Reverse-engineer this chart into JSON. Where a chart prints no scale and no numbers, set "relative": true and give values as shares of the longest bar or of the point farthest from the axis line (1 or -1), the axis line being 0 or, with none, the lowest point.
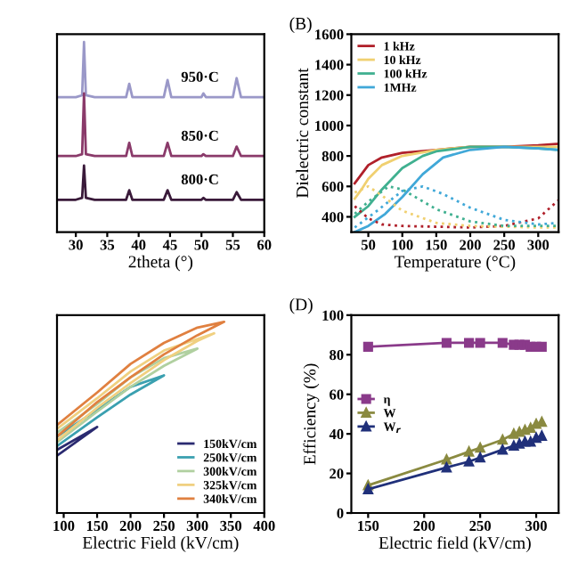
{
  "chart_data": [
    {
      "type": "line",
      "relative": true,
      "xlabel": "2theta (°)",
      "xlim": [
        27,
        60
      ],
      "xticks": [
        30,
        35,
        40,
        45,
        50,
        55,
        60
      ],
      "grid": false,
      "legend": false,
      "series": [
        {
          "color": "#9a98c8",
          "x": [
            27,
            30,
            31,
            31.3,
            31.6,
            33,
            38,
            38.5,
            39,
            44,
            44.6,
            45.2,
            50,
            50.3,
            50.7,
            55,
            55.6,
            56.3,
            60
          ],
          "values": [
            0.71,
            0.71,
            0.72,
            1.0,
            0.72,
            0.71,
            0.71,
            0.78,
            0.71,
            0.71,
            0.8,
            0.71,
            0.71,
            0.73,
            0.71,
            0.71,
            0.81,
            0.71,
            0.71
          ]
        },
        {
          "color": "#8a3a6a",
          "x": [
            27,
            30,
            31,
            31.3,
            31.6,
            33,
            38,
            38.5,
            39,
            44,
            44.6,
            45.2,
            50,
            50.3,
            50.7,
            55,
            55.6,
            56.3,
            60
          ],
          "values": [
            0.4,
            0.4,
            0.41,
            0.73,
            0.41,
            0.4,
            0.4,
            0.47,
            0.4,
            0.4,
            0.47,
            0.4,
            0.4,
            0.41,
            0.4,
            0.4,
            0.45,
            0.4,
            0.4
          ]
        },
        {
          "color": "#3a1a3a",
          "x": [
            27,
            30,
            31,
            31.3,
            31.6,
            33,
            38,
            38.5,
            39,
            44,
            44.6,
            45.2,
            50,
            50.3,
            50.7,
            55,
            55.6,
            56.3,
            60
          ],
          "values": [
            0.17,
            0.17,
            0.18,
            0.35,
            0.18,
            0.17,
            0.17,
            0.22,
            0.17,
            0.17,
            0.22,
            0.17,
            0.17,
            0.18,
            0.17,
            0.17,
            0.21,
            0.17,
            0.17
          ]
        }
      ],
      "annotations": [
        "950·C",
        "850·C",
        "800·C"
      ]
    },
    {
      "type": "line",
      "title": "(B)",
      "xlabel": "Temperature (°C)",
      "ylabel": "Dielectric constant",
      "xlim": [
        25,
        330
      ],
      "xticks": [
        50,
        100,
        150,
        200,
        250,
        300
      ],
      "ylim": [
        300,
        1600
      ],
      "yticks": [
        400,
        600,
        800,
        1000,
        1200,
        1400,
        1600
      ],
      "grid": false,
      "legend": "top left",
      "series": [
        {
          "name": "1 kHz",
          "color": "#b0202a",
          "x": [
            30,
            40,
            50,
            70,
            100,
            150,
            200,
            250,
            300,
            330
          ],
          "values": [
            620,
            680,
            740,
            790,
            820,
            840,
            860,
            860,
            870,
            880
          ]
        },
        {
          "name": "10 kHz",
          "color": "#f0d070",
          "x": [
            30,
            40,
            50,
            70,
            100,
            150,
            200,
            250,
            300,
            330
          ],
          "values": [
            520,
            580,
            650,
            740,
            800,
            840,
            860,
            860,
            860,
            860
          ]
        },
        {
          "name": "100 kHz",
          "color": "#40b090",
          "x": [
            30,
            50,
            70,
            100,
            130,
            150,
            200,
            250,
            300,
            330
          ],
          "values": [
            400,
            470,
            580,
            720,
            800,
            830,
            860,
            860,
            850,
            840
          ]
        },
        {
          "name": "1MHz",
          "color": "#40a8d8",
          "x": [
            30,
            50,
            75,
            100,
            130,
            160,
            200,
            250,
            300,
            330
          ],
          "values": [
            300,
            340,
            420,
            530,
            680,
            790,
            840,
            860,
            850,
            840
          ]
        },
        {
          "color": "#b0202a",
          "line_style": "dotted",
          "x": [
            30,
            50,
            70,
            100,
            200,
            250,
            300,
            330
          ],
          "values": [
            470,
            390,
            350,
            340,
            330,
            340,
            390,
            510
          ]
        },
        {
          "color": "#f0d070",
          "line_style": "dotted",
          "x": [
            30,
            50,
            70,
            100,
            150,
            200,
            300,
            330
          ],
          "values": [
            560,
            600,
            540,
            440,
            360,
            340,
            330,
            330
          ]
        },
        {
          "color": "#40b090",
          "line_style": "dotted",
          "x": [
            30,
            50,
            80,
            100,
            150,
            200,
            250,
            330
          ],
          "values": [
            420,
            500,
            600,
            580,
            450,
            370,
            340,
            340
          ]
        },
        {
          "color": "#40a8d8",
          "line_style": "dotted",
          "x": [
            30,
            60,
            100,
            130,
            160,
            200,
            250,
            300,
            330
          ],
          "values": [
            330,
            430,
            570,
            600,
            550,
            460,
            380,
            350,
            360
          ]
        }
      ]
    },
    {
      "type": "line",
      "relative": true,
      "xlabel": "Electric Field (kV/cm)",
      "xlim": [
        90,
        400
      ],
      "xticks": [
        100,
        150,
        200,
        250,
        300,
        350,
        400
      ],
      "grid": false,
      "legend": "bottom right",
      "series": [
        {
          "name": "150kV/cm",
          "color": "#2a2a70",
          "x": [
            90,
            150,
            90
          ],
          "values": [
            0.3,
            0.45,
            0.33
          ]
        },
        {
          "name": "250kV/cm",
          "color": "#3aa0b0",
          "x": [
            90,
            150,
            200,
            250,
            200,
            150,
            90
          ],
          "values": [
            0.35,
            0.5,
            0.62,
            0.72,
            0.66,
            0.54,
            0.4
          ]
        },
        {
          "name": "300kV/cm",
          "color": "#b0d0a0",
          "x": [
            90,
            150,
            200,
            250,
            300,
            250,
            200,
            150,
            90
          ],
          "values": [
            0.37,
            0.53,
            0.66,
            0.77,
            0.86,
            0.81,
            0.71,
            0.57,
            0.42
          ]
        },
        {
          "name": "325kV/cm",
          "color": "#f0d080",
          "x": [
            90,
            150,
            200,
            250,
            300,
            325,
            250,
            200,
            150,
            90
          ],
          "values": [
            0.38,
            0.55,
            0.68,
            0.8,
            0.9,
            0.94,
            0.85,
            0.74,
            0.6,
            0.44
          ]
        },
        {
          "name": "340kV/cm",
          "color": "#e08040",
          "x": [
            90,
            150,
            200,
            250,
            300,
            340,
            300,
            250,
            200,
            150,
            90
          ],
          "values": [
            0.4,
            0.58,
            0.71,
            0.83,
            0.93,
            1.0,
            0.97,
            0.89,
            0.78,
            0.63,
            0.46
          ]
        }
      ]
    },
    {
      "type": "line",
      "title": "(D)",
      "xlabel": "Electric field (kV/cm)",
      "ylabel": "Efficiency (%)",
      "xlim": [
        135,
        320
      ],
      "xticks": [
        150,
        200,
        250,
        300
      ],
      "ylim": [
        0,
        100
      ],
      "yticks": [
        0,
        20,
        40,
        60,
        80,
        100
      ],
      "grid": false,
      "legend": "left",
      "series": [
        {
          "name": "η",
          "color": "#8a3a8a",
          "marker": "square",
          "x": [
            150,
            220,
            240,
            250,
            270,
            280,
            285,
            290,
            295,
            300,
            305
          ],
          "values": [
            84,
            86,
            86,
            86,
            86,
            85,
            85,
            85,
            84,
            84,
            84
          ]
        },
        {
          "name": "W",
          "color": "#8a8a40",
          "marker": "triangle",
          "x": [
            150,
            220,
            240,
            250,
            270,
            280,
            285,
            290,
            295,
            300,
            305
          ],
          "values": [
            14,
            27,
            31,
            33,
            37,
            40,
            41,
            42,
            43,
            45,
            46
          ]
        },
        {
          "name": "W$_{r}$",
          "color": "#20307a",
          "marker": "triangle",
          "x": [
            150,
            220,
            240,
            250,
            270,
            280,
            285,
            290,
            295,
            300,
            305
          ],
          "values": [
            12,
            23,
            26,
            28,
            32,
            34,
            35,
            36,
            36,
            38,
            39
          ]
        }
      ]
    }
  ]
}
